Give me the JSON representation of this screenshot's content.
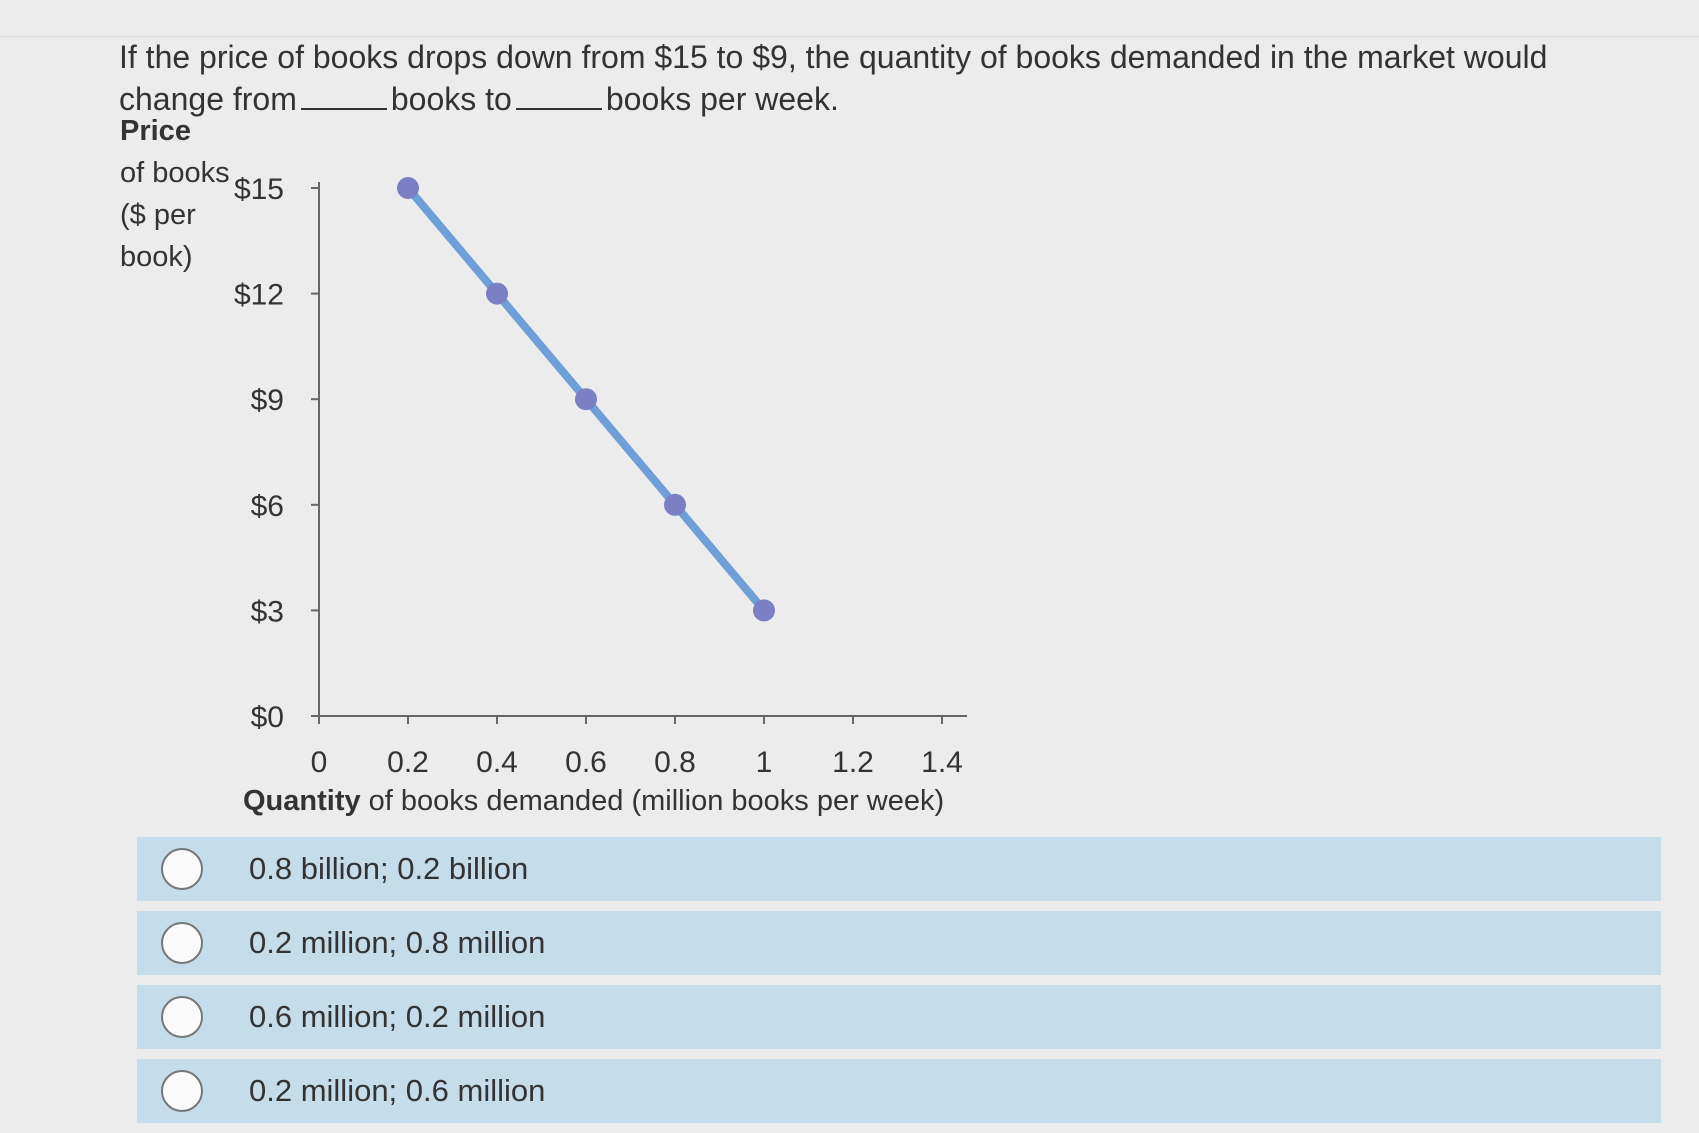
{
  "question": {
    "part1": "If the price of books drops down from $15 to $9, the quantity of books demanded in the market would change from",
    "part2": "books to",
    "part3": "books per week."
  },
  "chart_data": {
    "type": "line",
    "ylabel_bold": "Price",
    "ylabel_lines": [
      "of books",
      "($ per",
      "book)"
    ],
    "xlabel_bold": "Quantity",
    "xlabel_rest": " of books demanded (million books per week)",
    "x_ticks": [
      "0",
      "0.2",
      "0.4",
      "0.6",
      "0.8",
      "1",
      "1.2",
      "1.4"
    ],
    "y_ticks": [
      "$0",
      "$3",
      "$6",
      "$9",
      "$12",
      "$15"
    ],
    "xlim": [
      0,
      1.5
    ],
    "ylim": [
      0,
      15
    ],
    "series": [
      {
        "x": [
          0.2,
          0.4,
          0.6,
          0.8,
          1.0
        ],
        "y": [
          15,
          12,
          9,
          6,
          3
        ]
      }
    ],
    "line_color": "#6f9fd8",
    "point_color": "#7b7fc4"
  },
  "options": [
    {
      "label": "0.8 billion; 0.2 billion"
    },
    {
      "label": "0.2 million; 0.8 million"
    },
    {
      "label": "0.6 million; 0.2 million"
    },
    {
      "label": "0.2 million; 0.6 million"
    }
  ]
}
